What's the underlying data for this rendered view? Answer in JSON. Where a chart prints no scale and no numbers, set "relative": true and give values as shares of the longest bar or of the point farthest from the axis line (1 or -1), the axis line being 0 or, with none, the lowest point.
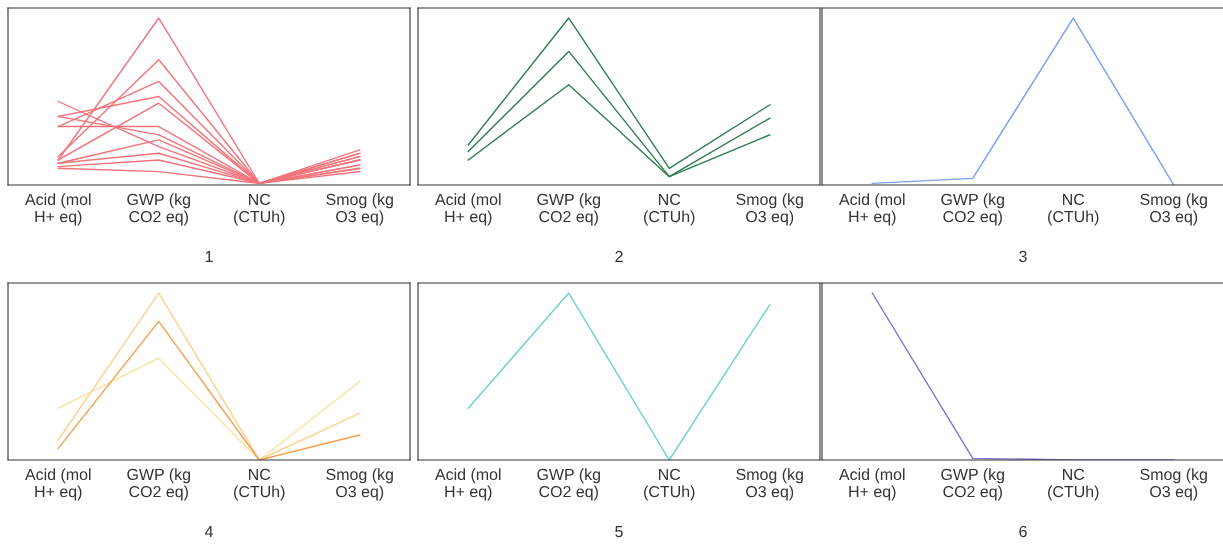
{
  "chart_data": [
    {
      "type": "line",
      "relative": true,
      "xlabel": "1",
      "categories": [
        "Acid (mol\nH+ eq)",
        "GWP (kg\nCO2 eq)",
        "NC\n(CTUh)",
        "Smog (kg\nO3 eq)"
      ],
      "series": [
        {
          "color": "#f2737a",
          "values": [
            0.15,
            1,
            0.01,
            0.21
          ]
        },
        {
          "color": "#f2737a",
          "values": [
            0.17,
            0.75,
            0.01,
            0.19
          ]
        },
        {
          "color": "#f2737a",
          "values": [
            0.35,
            0.62,
            0.01,
            0.19
          ]
        },
        {
          "color": "#f2737a",
          "values": [
            0.41,
            0.53,
            0.01,
            0.17
          ]
        },
        {
          "color": "#f2737a",
          "values": [
            0.5,
            0.23,
            0.01,
            0.17
          ]
        },
        {
          "color": "#f2737a",
          "values": [
            0.41,
            0.3,
            0.01,
            0.15
          ]
        },
        {
          "color": "#f2737a",
          "values": [
            0.35,
            0.35,
            0.01,
            0.15
          ]
        },
        {
          "color": "#f2737a",
          "values": [
            0.15,
            0.49,
            0.01,
            0.12
          ]
        },
        {
          "color": "#f2737a",
          "values": [
            0.13,
            0.27,
            0.01,
            0.12
          ]
        },
        {
          "color": "#f2737a",
          "values": [
            0.13,
            0.19,
            0.01,
            0.1
          ]
        },
        {
          "color": "#f2737a",
          "values": [
            0.11,
            0.15,
            0.01,
            0.1
          ]
        },
        {
          "color": "#f2737a",
          "values": [
            0.1,
            0.08,
            0.01,
            0.08
          ]
        }
      ]
    },
    {
      "type": "line",
      "relative": true,
      "xlabel": "2",
      "categories": [
        "Acid (mol\nH+ eq)",
        "GWP (kg\nCO2 eq)",
        "NC\n(CTUh)",
        "Smog (kg\nO3 eq)"
      ],
      "series": [
        {
          "color": "#2e7d4f",
          "values": [
            0.24,
            1,
            0.1,
            0.48
          ]
        },
        {
          "color": "#2e7d4f",
          "values": [
            0.2,
            0.8,
            0.05,
            0.4
          ]
        },
        {
          "color": "#2e7d4f",
          "values": [
            0.15,
            0.6,
            0.05,
            0.3
          ]
        }
      ]
    },
    {
      "type": "line",
      "relative": true,
      "xlabel": "3",
      "categories": [
        "Acid (mol\nH+ eq)",
        "GWP (kg\nCO2 eq)",
        "NC\n(CTUh)",
        "Smog (kg\nO3 eq)"
      ],
      "series": [
        {
          "color": "#7b9cf0",
          "values": [
            0.01,
            0.04,
            1,
            0
          ]
        }
      ]
    },
    {
      "type": "line",
      "relative": true,
      "xlabel": "4",
      "categories": [
        "Acid (mol\nH+ eq)",
        "GWP (kg\nCO2 eq)",
        "NC\n(CTUh)",
        "Smog (kg\nO3 eq)"
      ],
      "series": [
        {
          "color": "#fde3a0",
          "values": [
            0.31,
            0.61,
            0,
            0.47
          ]
        },
        {
          "color": "#fbd28a",
          "values": [
            0.12,
            1,
            0,
            0.28
          ]
        },
        {
          "color": "#f0a050",
          "values": [
            0.07,
            0.83,
            0,
            0.15
          ]
        }
      ]
    },
    {
      "type": "line",
      "relative": true,
      "xlabel": "5",
      "categories": [
        "Acid (mol\nH+ eq)",
        "GWP (kg\nCO2 eq)",
        "NC\n(CTUh)",
        "Smog (kg\nO3 eq)"
      ],
      "series": [
        {
          "color": "#6fcfcf",
          "values": [
            0.31,
            1,
            0,
            0.93
          ]
        }
      ]
    },
    {
      "type": "line",
      "relative": true,
      "xlabel": "6",
      "categories": [
        "Acid (mol\nH+ eq)",
        "GWP (kg\nCO2 eq)",
        "NC\n(CTUh)",
        "Smog (kg\nO3 eq)"
      ],
      "series": [
        {
          "color": "#8a6fd6",
          "values": [
            1,
            0.01,
            0,
            0
          ]
        }
      ]
    }
  ]
}
